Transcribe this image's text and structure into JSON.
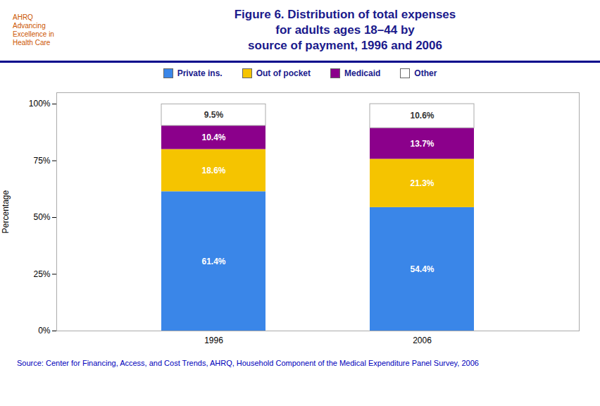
{
  "chart_data": {
    "type": "bar",
    "title": "Figure 6. Distribution of total expenses\nfor adults ages 18–44 by\nsource of payment, 1996 and 2006",
    "annotations": [
      "AHRQ\nAdvancing\nExcellence in\nHealth Care",
      "Source: Center for Financing, Access, and Cost Trends, AHRQ, Household Component of the Medical Expenditure Panel Survey, 2006"
    ],
    "categories": [
      "1996",
      "2006"
    ],
    "series": [
      {
        "name": "Private ins.",
        "color": "#3a86e8",
        "values": [
          61.4,
          54.4
        ],
        "value_labels": [
          "61.4%",
          "54.4%"
        ]
      },
      {
        "name": "Out of pocket",
        "color": "#f5c400",
        "values": [
          18.6,
          21.3
        ],
        "value_labels": [
          "18.6%",
          "21.3%"
        ]
      },
      {
        "name": "Medicaid",
        "color": "#8b008b",
        "values": [
          10.4,
          13.7
        ],
        "value_labels": [
          "10.4%",
          "13.7%"
        ]
      },
      {
        "name": "Other",
        "color": "#ffffff",
        "values": [
          9.5,
          10.6
        ],
        "value_labels": [
          "9.5%",
          "10.6%"
        ]
      }
    ],
    "ylabel": "Percentage",
    "ylim": [
      0,
      105
    ],
    "yticks": [
      {
        "value": 0,
        "label": "0%"
      },
      {
        "value": 25,
        "label": "25%"
      },
      {
        "value": 50,
        "label": "50%"
      },
      {
        "value": 75,
        "label": "75%"
      },
      {
        "value": 100,
        "label": "100%"
      }
    ],
    "stacked": true,
    "data_labels": true,
    "legend": "top",
    "grid": false
  }
}
